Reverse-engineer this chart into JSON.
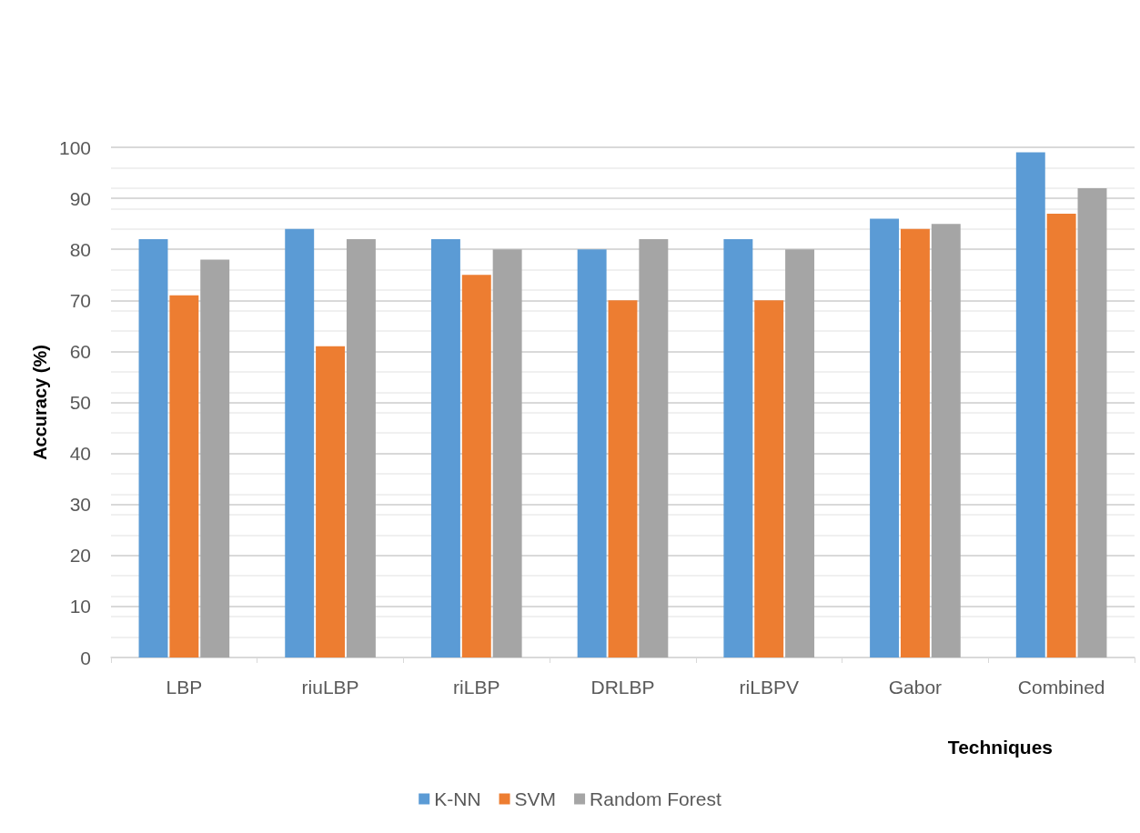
{
  "chart_data": {
    "type": "bar",
    "xlabel": "Techniques",
    "ylabel": "Accuracy (%)",
    "categories": [
      "LBP",
      "riuLBP",
      "riLBP",
      "DRLBP",
      "riLBPV",
      "Gabor",
      "Combined"
    ],
    "series": [
      {
        "name": "K-NN",
        "color": "#5b9bd5",
        "values": [
          82,
          84,
          82,
          80,
          82,
          86,
          99
        ]
      },
      {
        "name": "SVM",
        "color": "#ed7d31",
        "values": [
          71,
          61,
          75,
          70,
          70,
          84,
          87
        ]
      },
      {
        "name": "Random Forest",
        "color": "#a5a5a5",
        "values": [
          78,
          82,
          80,
          82,
          80,
          85,
          92
        ]
      }
    ],
    "ylim": [
      0,
      100
    ],
    "yticks": [
      0,
      10,
      20,
      30,
      40,
      50,
      60,
      70,
      80,
      90,
      100
    ],
    "grid": "y",
    "legend": "bottom"
  }
}
